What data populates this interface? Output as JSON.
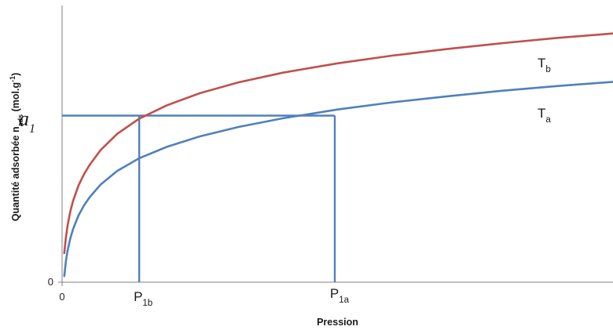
{
  "chart_data": {
    "type": "line",
    "title": "",
    "xlabel": "Pression",
    "ylabel": {
      "main": "Quantité adsorbée n",
      "sub": "ads",
      "units_open": " (mol.g",
      "units_sup": "-1",
      "units_close": ")"
    },
    "xlim": [
      0,
      100
    ],
    "ylim": [
      0,
      100
    ],
    "grid": false,
    "legend": "none",
    "x_tick_label": "0",
    "y_tick_label": "0",
    "series": [
      {
        "label": {
          "main": "T",
          "sub": "b"
        },
        "color": "#c0504d",
        "points": [
          [
            0.4,
            10.5
          ],
          [
            0.7,
            16.2
          ],
          [
            1.0,
            20.5
          ],
          [
            1.5,
            25.6
          ],
          [
            2.0,
            29.4
          ],
          [
            3.0,
            35.0
          ],
          [
            4.0,
            39.1
          ],
          [
            5.0,
            42.4
          ],
          [
            7.0,
            47.8
          ],
          [
            10.0,
            53.6
          ],
          [
            14.0,
            59.1
          ],
          [
            19.0,
            63.9
          ],
          [
            25.0,
            68.3
          ],
          [
            32.0,
            72.2
          ],
          [
            40.0,
            75.7
          ],
          [
            50.0,
            79.1
          ],
          [
            60.0,
            81.9
          ],
          [
            70.0,
            84.3
          ],
          [
            80.0,
            86.4
          ],
          [
            90.0,
            88.3
          ],
          [
            100.0,
            89.9
          ]
        ]
      },
      {
        "label": {
          "main": "T",
          "sub": "a"
        },
        "color": "#4f81bd",
        "points": [
          [
            0.4,
            2.2
          ],
          [
            0.7,
            7.7
          ],
          [
            1.0,
            11.4
          ],
          [
            1.5,
            15.9
          ],
          [
            2.0,
            19.2
          ],
          [
            3.0,
            24.2
          ],
          [
            4.0,
            27.8
          ],
          [
            5.0,
            30.7
          ],
          [
            7.0,
            35.3
          ],
          [
            10.0,
            40.2
          ],
          [
            14.0,
            44.8
          ],
          [
            19.0,
            48.9
          ],
          [
            25.0,
            52.7
          ],
          [
            32.0,
            56.1
          ],
          [
            40.0,
            59.2
          ],
          [
            50.0,
            62.4
          ],
          [
            60.0,
            65.0
          ],
          [
            70.0,
            67.2
          ],
          [
            80.0,
            69.2
          ],
          [
            90.0,
            70.9
          ],
          [
            100.0,
            72.4
          ]
        ]
      }
    ],
    "guides": {
      "color": "#4f81bd",
      "a1": {
        "y": 60.2,
        "label": {
          "main": "a",
          "sub": "1"
        }
      },
      "P1b": {
        "x": 14.0,
        "label": {
          "main": "P",
          "sub": "1b"
        }
      },
      "P1a": {
        "x": 49.5,
        "label": {
          "main": "P",
          "sub": "1a"
        }
      }
    }
  }
}
